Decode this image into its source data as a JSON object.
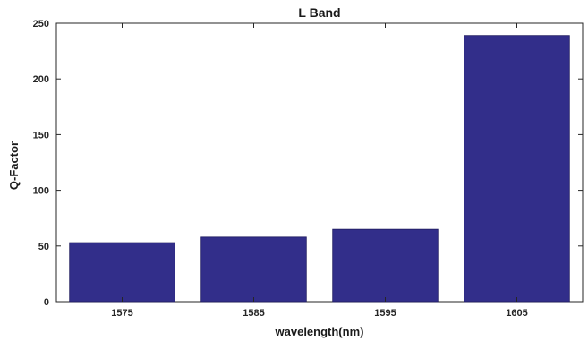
{
  "chart_data": {
    "type": "bar",
    "title": "L Band",
    "xlabel": "wavelength(nm)",
    "ylabel": "Q-Factor",
    "categories": [
      "1575",
      "1585",
      "1595",
      "1605"
    ],
    "values": [
      53,
      58,
      65,
      239
    ],
    "ylim": [
      0,
      250
    ],
    "yticks": [
      0,
      50,
      100,
      150,
      200,
      250
    ],
    "grid": false,
    "bar_color": "#322e8a",
    "axis_color": "#262626"
  }
}
